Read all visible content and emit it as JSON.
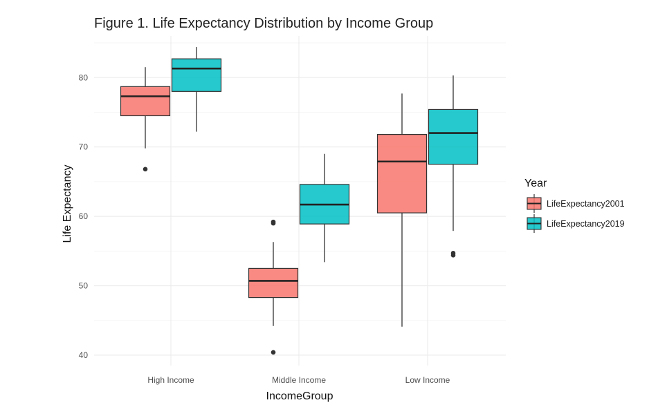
{
  "chart_data": {
    "type": "box",
    "title": "Figure 1. Life Expectancy Distribution by Income Group",
    "xlabel": "IncomeGroup",
    "ylabel": "Life Expectancy",
    "categories": [
      "High Income",
      "Middle Income",
      "Low Income"
    ],
    "ylim": [
      38.5,
      86
    ],
    "yticks": [
      40,
      50,
      60,
      70,
      80
    ],
    "grid": true,
    "legend": {
      "title": "Year",
      "position": "right"
    },
    "series": [
      {
        "name": "LifeExpectancy2001",
        "color": "#F8766D",
        "boxes": [
          {
            "min": 69.8,
            "q1": 74.5,
            "median": 77.3,
            "q3": 78.7,
            "max": 81.5,
            "outliers": [
              66.8
            ]
          },
          {
            "min": 44.2,
            "q1": 48.3,
            "median": 50.7,
            "q3": 52.5,
            "max": 56.3,
            "outliers": [
              59.0,
              59.2,
              40.4
            ]
          },
          {
            "min": 44.1,
            "q1": 60.5,
            "median": 67.9,
            "q3": 71.8,
            "max": 77.7,
            "outliers": []
          }
        ]
      },
      {
        "name": "LifeExpectancy2019",
        "color": "#00BFC4",
        "boxes": [
          {
            "min": 72.2,
            "q1": 78.0,
            "median": 81.3,
            "q3": 82.7,
            "max": 84.4,
            "outliers": []
          },
          {
            "min": 53.4,
            "q1": 58.9,
            "median": 61.7,
            "q3": 64.6,
            "max": 69.0,
            "outliers": []
          },
          {
            "min": 57.9,
            "q1": 67.5,
            "median": 72.0,
            "q3": 75.4,
            "max": 80.3,
            "outliers": [
              54.4,
              54.7
            ]
          }
        ]
      }
    ]
  }
}
